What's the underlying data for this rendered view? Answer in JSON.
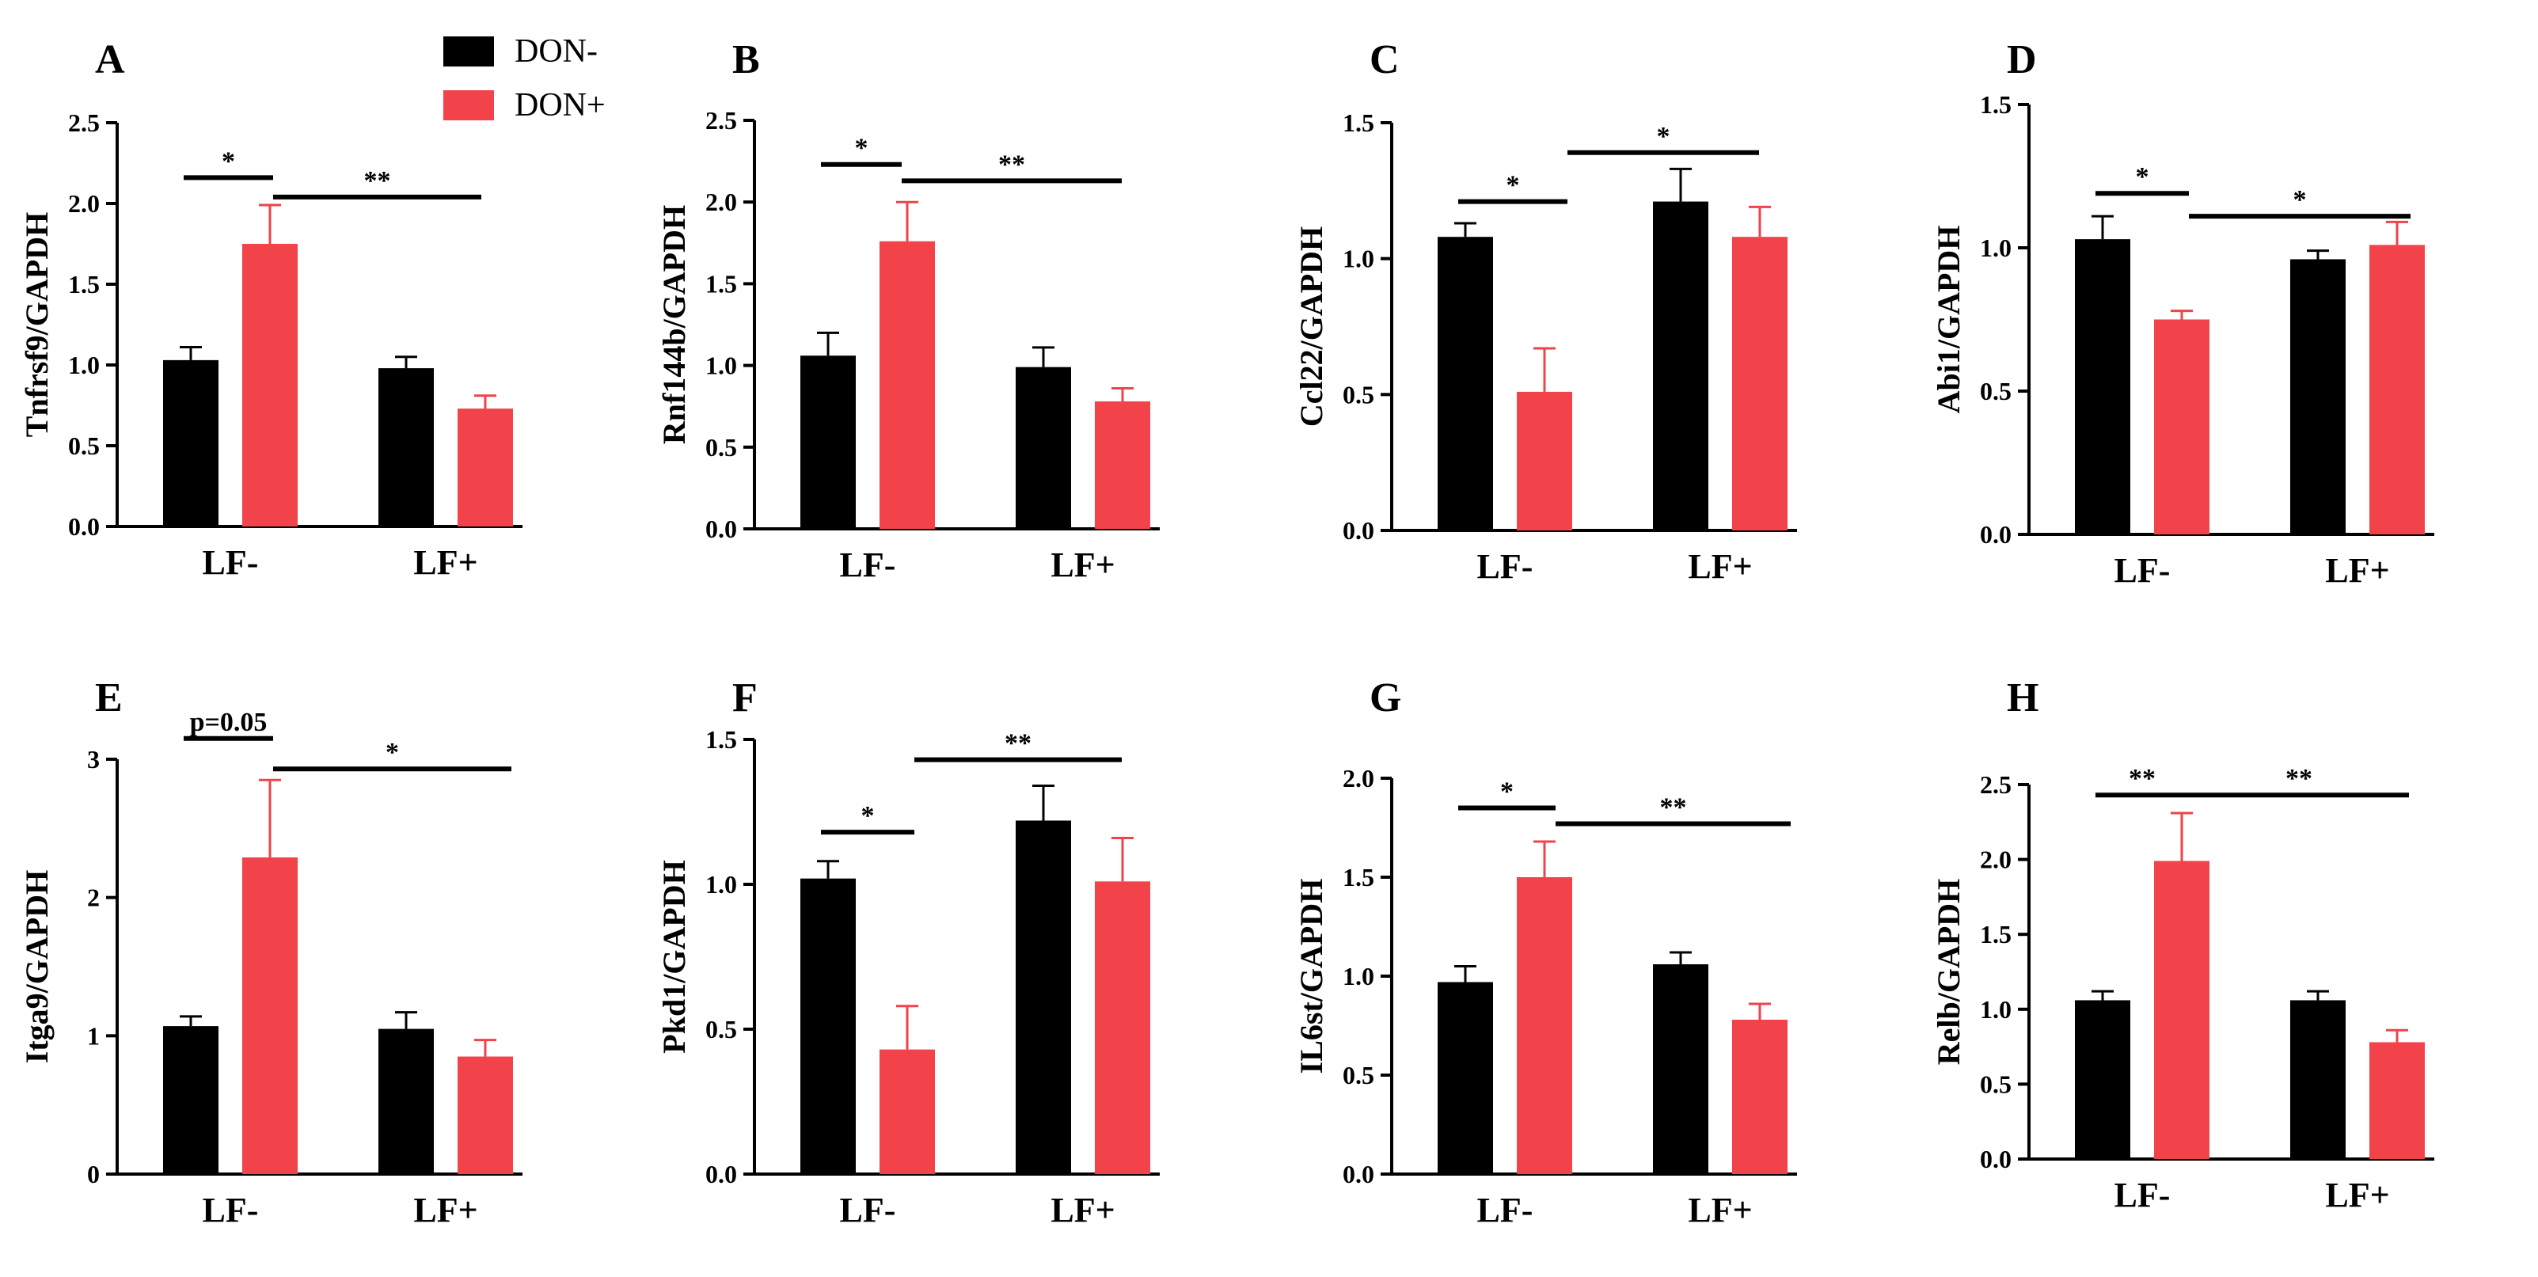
{
  "legend": {
    "items": [
      {
        "label": "DON-",
        "color": "#000000"
      },
      {
        "label": "DON+",
        "color": "#f2424a"
      }
    ]
  },
  "categories": [
    "LF-",
    "LF+"
  ],
  "chart_data": [
    {
      "type": "bar",
      "panel": "A",
      "ylabel": "Tnfrsf9/GAPDH",
      "categories": [
        "LF-",
        "LF+"
      ],
      "ylim": [
        0,
        2.5
      ],
      "yticks": [
        "0.0",
        "0.5",
        "1.0",
        "1.5",
        "2.0",
        "2.5"
      ],
      "series": [
        {
          "name": "DON-",
          "values": [
            1.03,
            0.98
          ],
          "errors": [
            0.08,
            0.07
          ]
        },
        {
          "name": "DON+",
          "values": [
            1.75,
            0.73
          ],
          "errors": [
            0.24,
            0.08
          ]
        }
      ],
      "annotations": [
        {
          "label": "*",
          "y": 2.16
        },
        {
          "label": "**",
          "y": 2.04
        }
      ]
    },
    {
      "type": "bar",
      "panel": "B",
      "ylabel": "Rnf144b/GAPDH",
      "categories": [
        "LF-",
        "LF+"
      ],
      "ylim": [
        0,
        2.5
      ],
      "yticks": [
        "0.0",
        "0.5",
        "1.0",
        "1.5",
        "2.0",
        "2.5"
      ],
      "series": [
        {
          "name": "DON-",
          "values": [
            1.06,
            0.99
          ],
          "errors": [
            0.14,
            0.12
          ]
        },
        {
          "name": "DON+",
          "values": [
            1.76,
            0.78
          ],
          "errors": [
            0.24,
            0.08
          ]
        }
      ],
      "annotations": [
        {
          "label": "*",
          "y": 2.23
        },
        {
          "label": "**",
          "y": 2.13
        }
      ]
    },
    {
      "type": "bar",
      "panel": "C",
      "ylabel": "Ccl22/GAPDH",
      "categories": [
        "LF-",
        "LF+"
      ],
      "ylim": [
        0,
        1.5
      ],
      "yticks": [
        "0.0",
        "0.5",
        "1.0",
        "1.5"
      ],
      "series": [
        {
          "name": "DON-",
          "values": [
            1.08,
            1.21
          ],
          "errors": [
            0.05,
            0.12
          ]
        },
        {
          "name": "DON+",
          "values": [
            0.51,
            1.08
          ],
          "errors": [
            0.16,
            0.11
          ]
        }
      ],
      "annotations": [
        {
          "label": "*",
          "y": 1.21
        },
        {
          "label": "*",
          "y": 1.39
        }
      ]
    },
    {
      "type": "bar",
      "panel": "D",
      "ylabel": "Abi1/GAPDH",
      "categories": [
        "LF-",
        "LF+"
      ],
      "ylim": [
        0,
        1.5
      ],
      "yticks": [
        "0.0",
        "0.5",
        "1.0",
        "1.5"
      ],
      "series": [
        {
          "name": "DON-",
          "values": [
            1.03,
            0.96
          ],
          "errors": [
            0.08,
            0.03
          ]
        },
        {
          "name": "DON+",
          "values": [
            0.75,
            1.01
          ],
          "errors": [
            0.03,
            0.08
          ]
        }
      ],
      "annotations": [
        {
          "label": "*",
          "y": 1.19
        },
        {
          "label": "*",
          "y": 1.11
        }
      ]
    },
    {
      "type": "bar",
      "panel": "E",
      "ylabel": "Itga9/GAPDH",
      "categories": [
        "LF-",
        "LF+"
      ],
      "ylim": [
        0,
        3
      ],
      "yticks": [
        "0",
        "1",
        "2",
        "3"
      ],
      "series": [
        {
          "name": "DON-",
          "values": [
            1.07,
            1.05
          ],
          "errors": [
            0.07,
            0.12
          ]
        },
        {
          "name": "DON+",
          "values": [
            2.29,
            0.85
          ],
          "errors": [
            0.56,
            0.12
          ]
        }
      ],
      "annotations": [
        {
          "label": "p=0.05",
          "y": 3.15
        },
        {
          "label": "*",
          "y": 2.93
        }
      ]
    },
    {
      "type": "bar",
      "panel": "F",
      "ylabel": "Pkd1/GAPDH",
      "categories": [
        "LF-",
        "LF+"
      ],
      "ylim": [
        0,
        1.5
      ],
      "yticks": [
        "0.0",
        "0.5",
        "1.0",
        "1.5"
      ],
      "series": [
        {
          "name": "DON-",
          "values": [
            1.02,
            1.22
          ],
          "errors": [
            0.06,
            0.12
          ]
        },
        {
          "name": "DON+",
          "values": [
            0.43,
            1.01
          ],
          "errors": [
            0.15,
            0.15
          ]
        }
      ],
      "annotations": [
        {
          "label": "*",
          "y": 1.18
        },
        {
          "label": "**",
          "y": 1.43
        }
      ]
    },
    {
      "type": "bar",
      "panel": "G",
      "ylabel": "IL6st/GAPDH",
      "categories": [
        "LF-",
        "LF+"
      ],
      "ylim": [
        0,
        2.0
      ],
      "yticks": [
        "0.0",
        "0.5",
        "1.0",
        "1.5",
        "2.0"
      ],
      "series": [
        {
          "name": "DON-",
          "values": [
            0.97,
            1.06
          ],
          "errors": [
            0.08,
            0.06
          ]
        },
        {
          "name": "DON+",
          "values": [
            1.5,
            0.78
          ],
          "errors": [
            0.18,
            0.08
          ]
        }
      ],
      "annotations": [
        {
          "label": "*",
          "y": 1.85
        },
        {
          "label": "**",
          "y": 1.77
        }
      ]
    },
    {
      "type": "bar",
      "panel": "H",
      "ylabel": "Relb/GAPDH",
      "categories": [
        "LF-",
        "LF+"
      ],
      "ylim": [
        0,
        2.5
      ],
      "yticks": [
        "0.0",
        "0.5",
        "1.0",
        "1.5",
        "2.0",
        "2.5"
      ],
      "series": [
        {
          "name": "DON-",
          "values": [
            1.06,
            1.06
          ],
          "errors": [
            0.06,
            0.06
          ]
        },
        {
          "name": "DON+",
          "values": [
            1.99,
            0.78
          ],
          "errors": [
            0.32,
            0.08
          ]
        }
      ],
      "annotations": [
        {
          "label": "**",
          "y": 2.43
        },
        {
          "label": "**",
          "y": 2.43
        }
      ]
    }
  ]
}
